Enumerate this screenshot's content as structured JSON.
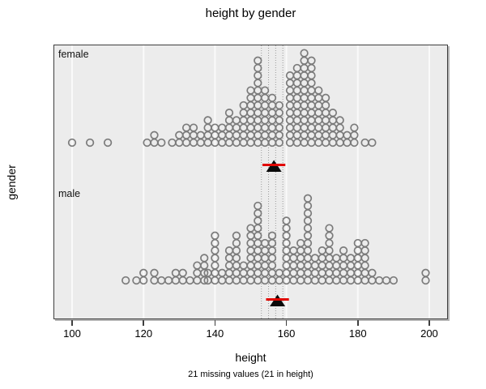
{
  "title": "height by gender",
  "xlabel": "height",
  "ylabel": "gender",
  "subtitle": "21 missing values (21 in height)",
  "axis": {
    "x_tick_labels": [
      "100",
      "120",
      "140",
      "160",
      "180",
      "200"
    ],
    "x_tick_values": [
      100,
      120,
      140,
      160,
      180,
      200
    ]
  },
  "colors": {
    "panel_bg": "#ececec",
    "grid": "#fafafa",
    "dot": "#7b7b7b",
    "border": "#3e3e3e",
    "marker": "#0a0a0a",
    "interval": "#e10600",
    "ref_dotted": "#9a9a9a"
  },
  "chart_data": {
    "type": "scatter",
    "variant": "stacked dotplot (one circle per observation, stacked by value), grouped by gender",
    "title": "height by gender",
    "xlabel": "height",
    "ylabel": "gender",
    "xlim": [
      95,
      205
    ],
    "grid": true,
    "legend": "none",
    "reference_lines_x_dotted": [
      153,
      155,
      157,
      159
    ],
    "note": "columns = [height_cm, stacked_count]; mean_marker = black triangle; interval = red line",
    "groups": [
      {
        "label": "female",
        "columns": [
          [
            100,
            1
          ],
          [
            105,
            1
          ],
          [
            110,
            1
          ],
          [
            121,
            1
          ],
          [
            123,
            2
          ],
          [
            125,
            1
          ],
          [
            128,
            1
          ],
          [
            130,
            2
          ],
          [
            132,
            3
          ],
          [
            134,
            3
          ],
          [
            136,
            2
          ],
          [
            138,
            4
          ],
          [
            140,
            3
          ],
          [
            142,
            3
          ],
          [
            144,
            5
          ],
          [
            146,
            4
          ],
          [
            148,
            6
          ],
          [
            150,
            8
          ],
          [
            152,
            12
          ],
          [
            154,
            8
          ],
          [
            156,
            7
          ],
          [
            158,
            6
          ],
          [
            161,
            10
          ],
          [
            163,
            11
          ],
          [
            165,
            13
          ],
          [
            167,
            12
          ],
          [
            169,
            8
          ],
          [
            171,
            7
          ],
          [
            173,
            5
          ],
          [
            175,
            4
          ],
          [
            177,
            2
          ],
          [
            179,
            3
          ],
          [
            182,
            1
          ],
          [
            184,
            1
          ]
        ],
        "mean_marker": 156.5,
        "interval": [
          153.3,
          159.7
        ]
      },
      {
        "label": "male",
        "columns": [
          [
            115,
            1
          ],
          [
            118,
            1
          ],
          [
            120,
            2
          ],
          [
            123,
            2
          ],
          [
            125,
            1
          ],
          [
            127,
            1
          ],
          [
            129,
            2
          ],
          [
            131,
            2
          ],
          [
            133,
            1
          ],
          [
            135,
            3
          ],
          [
            137,
            4
          ],
          [
            138,
            2
          ],
          [
            140,
            7
          ],
          [
            142,
            2
          ],
          [
            144,
            5
          ],
          [
            146,
            7
          ],
          [
            148,
            3
          ],
          [
            150,
            8
          ],
          [
            152,
            11
          ],
          [
            154,
            6
          ],
          [
            156,
            7
          ],
          [
            158,
            2
          ],
          [
            160,
            9
          ],
          [
            162,
            5
          ],
          [
            164,
            6
          ],
          [
            166,
            12
          ],
          [
            168,
            4
          ],
          [
            170,
            5
          ],
          [
            172,
            8
          ],
          [
            174,
            4
          ],
          [
            176,
            5
          ],
          [
            178,
            4
          ],
          [
            180,
            6
          ],
          [
            182,
            6
          ],
          [
            184,
            2
          ],
          [
            186,
            1
          ],
          [
            188,
            1
          ],
          [
            190,
            1
          ],
          [
            199,
            2
          ]
        ],
        "mean_marker": 157.5,
        "interval": [
          154.3,
          160.7
        ]
      }
    ]
  }
}
